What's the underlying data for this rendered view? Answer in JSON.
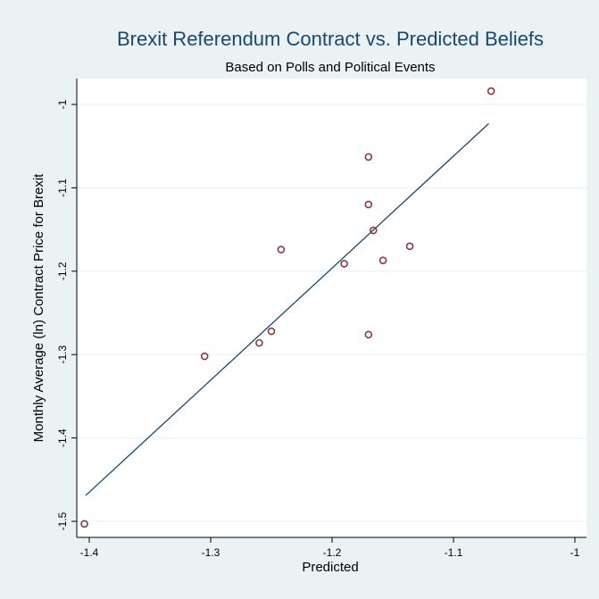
{
  "chart_data": {
    "type": "scatter",
    "title": "Brexit Referendum Contract vs. Predicted Beliefs",
    "subtitle": "Based on Polls and Political Events",
    "xlabel": "Predicted",
    "ylabel": "Monthly Average (ln) Contract Price for Brexit",
    "xlim": [
      -1.4,
      -1.0
    ],
    "ylim": [
      -1.5,
      -1.0
    ],
    "xticks": [
      -1.4,
      -1.3,
      -1.2,
      -1.1,
      -1
    ],
    "xtick_labels": [
      "-1.4",
      "-1.3",
      "-1.2",
      "-1.1",
      "-1"
    ],
    "yticks": [
      -1.5,
      -1.4,
      -1.3,
      -1.2,
      -1.1,
      -1
    ],
    "ytick_labels": [
      "-1.5",
      "-1.4",
      "-1.3",
      "-1.2",
      "-1.1",
      "-1"
    ],
    "grid": true,
    "points": [
      {
        "x": -1.404,
        "y": -1.503
      },
      {
        "x": -1.305,
        "y": -1.302
      },
      {
        "x": -1.26,
        "y": -1.286
      },
      {
        "x": -1.25,
        "y": -1.272
      },
      {
        "x": -1.242,
        "y": -1.174
      },
      {
        "x": -1.19,
        "y": -1.191
      },
      {
        "x": -1.17,
        "y": -1.276
      },
      {
        "x": -1.17,
        "y": -1.063
      },
      {
        "x": -1.17,
        "y": -1.12
      },
      {
        "x": -1.166,
        "y": -1.151
      },
      {
        "x": -1.158,
        "y": -1.187
      },
      {
        "x": -1.136,
        "y": -1.17
      },
      {
        "x": -1.069,
        "y": -0.984
      }
    ],
    "fit_line": {
      "x": [
        -1.403,
        -1.071
      ],
      "y": [
        -1.469,
        -1.023
      ]
    },
    "colors": {
      "background": "#eaf2f3",
      "plot_background": "#ffffff",
      "grid": "#eaf2f3",
      "marker": "#90353b",
      "fit_line": "#1a476f",
      "title": "#1a476f"
    }
  }
}
